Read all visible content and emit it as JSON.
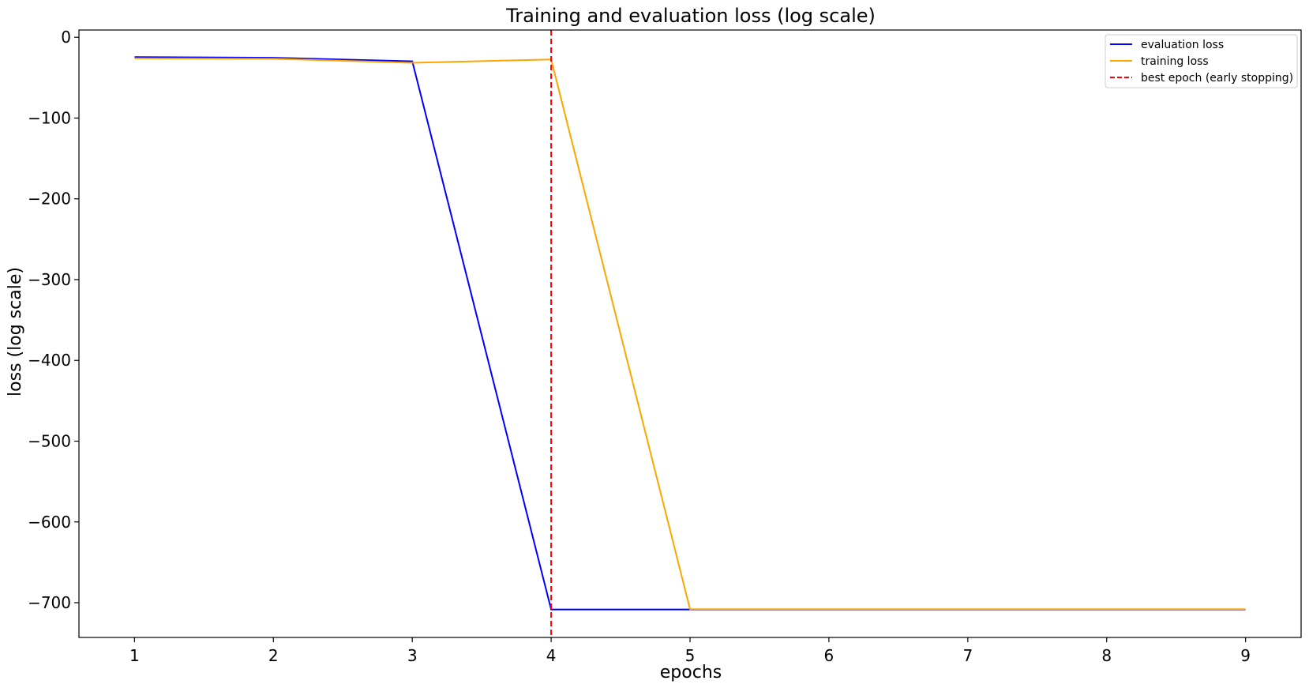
{
  "chart_data": {
    "type": "line",
    "title": "Training and evaluation loss (log scale)",
    "xlabel": "epochs",
    "ylabel": "loss (log scale)",
    "x": [
      1,
      2,
      3,
      4,
      5,
      6,
      7,
      8,
      9
    ],
    "xlim": [
      0.6,
      9.4
    ],
    "ylim": [
      -743,
      9
    ],
    "xticks": [
      1,
      2,
      3,
      4,
      5,
      6,
      7,
      8,
      9
    ],
    "yticks": [
      0,
      -100,
      -200,
      -300,
      -400,
      -500,
      -600,
      -700
    ],
    "ytick_labels": [
      "0",
      "−100",
      "−200",
      "−300",
      "−400",
      "−500",
      "−600",
      "−700"
    ],
    "grid": false,
    "legend_position": "top-right",
    "series": [
      {
        "name": "evaluation loss",
        "color": "#0000ff",
        "style": "solid",
        "values": [
          -24.5,
          -25.3,
          -29.7,
          -708.4,
          -708.4,
          -708.4,
          -708.4,
          -708.4,
          -708.4
        ]
      },
      {
        "name": "training loss",
        "color": "#ffa500",
        "style": "solid",
        "values": [
          -26.1,
          -26.6,
          -31.6,
          -27.5,
          -708.0,
          -708.0,
          -708.0,
          -708.0,
          -708.0
        ]
      }
    ],
    "vlines": [
      {
        "name": "best epoch (early stopping)",
        "x": 4,
        "color": "#ff0000",
        "style": "dashed"
      }
    ]
  }
}
